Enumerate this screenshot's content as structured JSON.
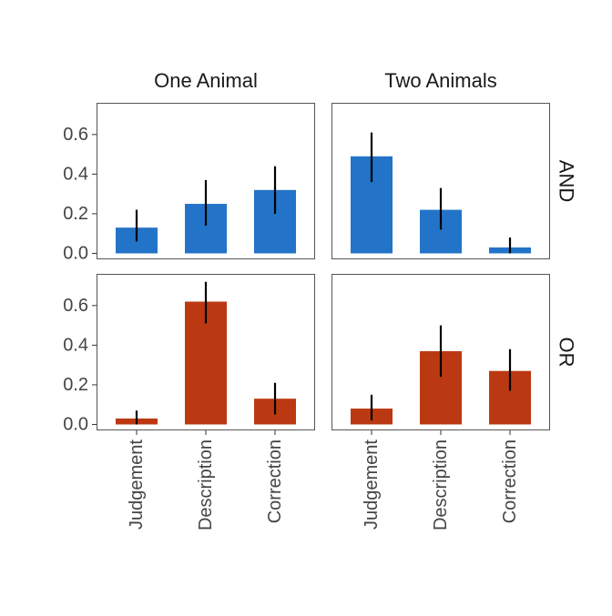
{
  "chart_data": {
    "type": "bar",
    "title": "",
    "xlabel": "",
    "ylabel": "",
    "ylim": [
      -0.03,
      0.76
    ],
    "yticks": [
      0.0,
      0.2,
      0.4,
      0.6
    ],
    "ytick_labels": [
      "0.0",
      "0.2",
      "0.4",
      "0.6"
    ],
    "categories": [
      "Judgement",
      "Description",
      "Correction"
    ],
    "facet_columns": [
      "One Animal",
      "Two Animals"
    ],
    "facet_rows": [
      "AND",
      "OR"
    ],
    "row_colors": {
      "AND": "#2374c8",
      "OR": "#bb3912"
    },
    "panels": [
      {
        "column": "One Animal",
        "row": "AND",
        "values": [
          0.13,
          0.25,
          0.32
        ],
        "err_low": [
          0.06,
          0.14,
          0.2
        ],
        "err_high": [
          0.22,
          0.37,
          0.44
        ]
      },
      {
        "column": "Two Animals",
        "row": "AND",
        "values": [
          0.49,
          0.22,
          0.03
        ],
        "err_low": [
          0.36,
          0.12,
          0.0
        ],
        "err_high": [
          0.61,
          0.33,
          0.08
        ]
      },
      {
        "column": "One Animal",
        "row": "OR",
        "values": [
          0.03,
          0.62,
          0.13
        ],
        "err_low": [
          0.0,
          0.51,
          0.05
        ],
        "err_high": [
          0.07,
          0.72,
          0.21
        ]
      },
      {
        "column": "Two Animals",
        "row": "OR",
        "values": [
          0.08,
          0.37,
          0.27
        ],
        "err_low": [
          0.02,
          0.24,
          0.17
        ],
        "err_high": [
          0.15,
          0.5,
          0.38
        ]
      }
    ],
    "grid": false,
    "legend": "none"
  }
}
